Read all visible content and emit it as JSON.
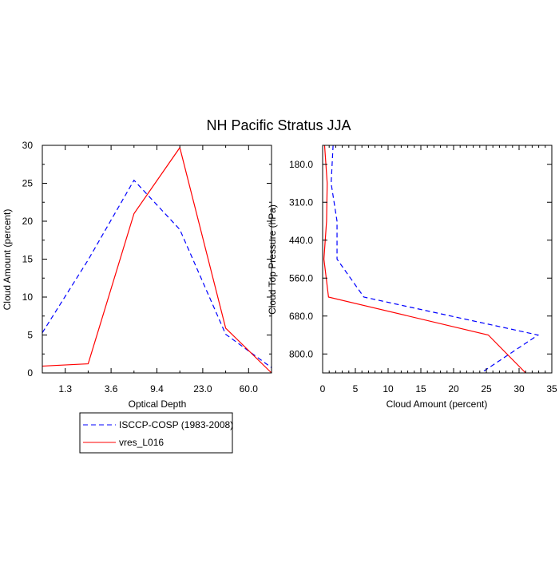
{
  "title": "NH Pacific Stratus JJA",
  "colors": {
    "obs": "#0000ff",
    "model": "#ff0000",
    "axis": "#000000"
  },
  "legend": {
    "placement": "bottom-left",
    "entries": [
      {
        "label": "ISCCP-COSP (1983-2008)",
        "style": "dashed",
        "color": "#0000ff"
      },
      {
        "label": "vres_L016",
        "style": "solid",
        "color": "#ff0000"
      }
    ]
  },
  "chart_data": [
    {
      "type": "line",
      "xlabel": "Optical Depth",
      "ylabel": "Cloud Amount (percent)",
      "xticks": [
        "1.3",
        "3.6",
        "9.4",
        "23.0",
        "60.0"
      ],
      "ylim": [
        0,
        30
      ],
      "yticks": [
        0,
        5,
        10,
        15,
        20,
        25,
        30
      ],
      "x_bin_edges": [
        0,
        1,
        2,
        3,
        4,
        5
      ],
      "series": [
        {
          "name": "ISCCP-COSP (1983-2008)",
          "x": [
            0,
            1,
            2,
            3,
            4,
            5
          ],
          "values": [
            5.3,
            14.9,
            25.4,
            18.9,
            5.1,
            0.7
          ],
          "style": "dashed",
          "color": "#0000ff"
        },
        {
          "name": "vres_L016",
          "x": [
            0,
            1,
            2,
            3,
            4,
            5
          ],
          "values": [
            0.9,
            1.2,
            21.0,
            29.7,
            5.9,
            0.0
          ],
          "style": "solid",
          "color": "#ff0000"
        }
      ]
    },
    {
      "type": "line",
      "xlabel": "Cloud Amount (percent)",
      "ylabel": "Cloud Top Pressure (hPa)",
      "xlim": [
        0,
        35
      ],
      "xticks": [
        0,
        5,
        10,
        15,
        20,
        25,
        30,
        35
      ],
      "yticks": [
        "180.0",
        "310.0",
        "440.0",
        "560.0",
        "680.0",
        "800.0"
      ],
      "y_bin_edges": [
        0,
        1,
        2,
        3,
        4,
        5,
        6
      ],
      "series": [
        {
          "name": "ISCCP-COSP (1983-2008)",
          "x": [
            1.6,
            1.3,
            2.2,
            2.2,
            6.3,
            32.9,
            24.2
          ],
          "y": [
            0,
            1,
            2,
            3,
            4,
            5,
            6
          ],
          "style": "dashed",
          "color": "#0000ff"
        },
        {
          "name": "vres_L016",
          "x": [
            0.3,
            0.7,
            0.6,
            0.2,
            0.9,
            25.3,
            31.0
          ],
          "y": [
            0,
            1,
            2,
            3,
            4,
            5,
            6
          ],
          "style": "solid",
          "color": "#ff0000"
        }
      ]
    }
  ]
}
